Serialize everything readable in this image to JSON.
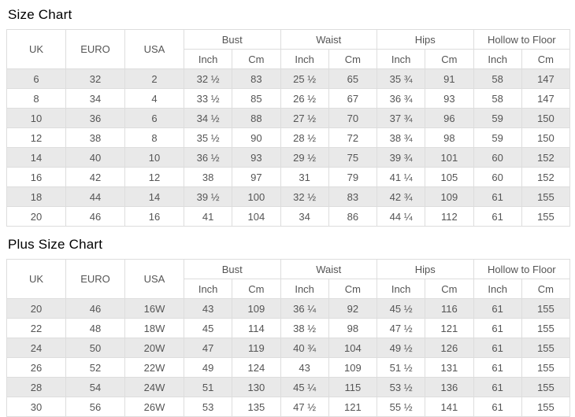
{
  "colors": {
    "stripe": "#e9e9e9",
    "border": "#dddddd",
    "text": "#555555",
    "title": "#000000"
  },
  "tables": [
    {
      "title": "Size Chart",
      "headers": {
        "uk": "UK",
        "euro": "EURO",
        "usa": "USA",
        "bust": "Bust",
        "waist": "Waist",
        "hips": "Hips",
        "hollow": "Hollow to Floor",
        "inch": "Inch",
        "cm": "Cm"
      },
      "rows": [
        [
          "6",
          "32",
          "2",
          "32 ½",
          "83",
          "25 ½",
          "65",
          "35 ¾",
          "91",
          "58",
          "147"
        ],
        [
          "8",
          "34",
          "4",
          "33 ½",
          "85",
          "26 ½",
          "67",
          "36 ¾",
          "93",
          "58",
          "147"
        ],
        [
          "10",
          "36",
          "6",
          "34 ½",
          "88",
          "27 ½",
          "70",
          "37 ¾",
          "96",
          "59",
          "150"
        ],
        [
          "12",
          "38",
          "8",
          "35 ½",
          "90",
          "28 ½",
          "72",
          "38 ¾",
          "98",
          "59",
          "150"
        ],
        [
          "14",
          "40",
          "10",
          "36 ½",
          "93",
          "29 ½",
          "75",
          "39 ¾",
          "101",
          "60",
          "152"
        ],
        [
          "16",
          "42",
          "12",
          "38",
          "97",
          "31",
          "79",
          "41 ¼",
          "105",
          "60",
          "152"
        ],
        [
          "18",
          "44",
          "14",
          "39 ½",
          "100",
          "32 ½",
          "83",
          "42 ¾",
          "109",
          "61",
          "155"
        ],
        [
          "20",
          "46",
          "16",
          "41",
          "104",
          "34",
          "86",
          "44 ¼",
          "112",
          "61",
          "155"
        ]
      ]
    },
    {
      "title": "Plus Size Chart",
      "headers": {
        "uk": "UK",
        "euro": "EURO",
        "usa": "USA",
        "bust": "Bust",
        "waist": "Waist",
        "hips": "Hips",
        "hollow": "Hollow to Floor",
        "inch": "Inch",
        "cm": "Cm"
      },
      "rows": [
        [
          "20",
          "46",
          "16W",
          "43",
          "109",
          "36 ¼",
          "92",
          "45 ½",
          "116",
          "61",
          "155"
        ],
        [
          "22",
          "48",
          "18W",
          "45",
          "114",
          "38 ½",
          "98",
          "47 ½",
          "121",
          "61",
          "155"
        ],
        [
          "24",
          "50",
          "20W",
          "47",
          "119",
          "40 ¾",
          "104",
          "49 ½",
          "126",
          "61",
          "155"
        ],
        [
          "26",
          "52",
          "22W",
          "49",
          "124",
          "43",
          "109",
          "51 ½",
          "131",
          "61",
          "155"
        ],
        [
          "28",
          "54",
          "24W",
          "51",
          "130",
          "45 ¼",
          "115",
          "53 ½",
          "136",
          "61",
          "155"
        ],
        [
          "30",
          "56",
          "26W",
          "53",
          "135",
          "47 ½",
          "121",
          "55 ½",
          "141",
          "61",
          "155"
        ]
      ]
    }
  ]
}
